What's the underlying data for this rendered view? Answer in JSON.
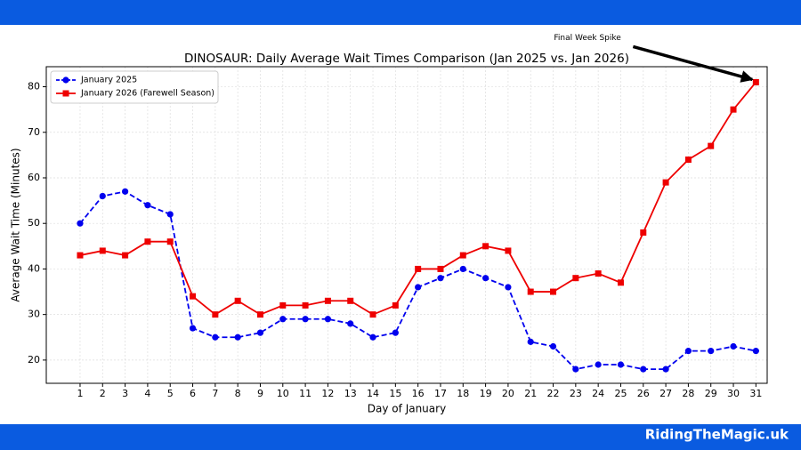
{
  "chart_data": {
    "type": "line",
    "title": "DINOSAUR: Daily Average Wait Times Comparison (Jan 2025 vs. Jan 2026)",
    "xlabel": "Day of January",
    "ylabel": "Average Wait Time (Minutes)",
    "x": [
      1,
      2,
      3,
      4,
      5,
      6,
      7,
      8,
      9,
      10,
      11,
      12,
      13,
      14,
      15,
      16,
      17,
      18,
      19,
      20,
      21,
      22,
      23,
      24,
      25,
      26,
      27,
      28,
      29,
      30,
      31
    ],
    "series": [
      {
        "name": "January 2025",
        "color": "#0000ee",
        "linestyle": "dashed",
        "marker": "circle",
        "values": [
          50,
          56,
          57,
          54,
          52,
          27,
          25,
          25,
          26,
          29,
          29,
          29,
          28,
          25,
          26,
          36,
          38,
          40,
          38,
          36,
          24,
          23,
          18,
          19,
          19,
          18,
          18,
          22,
          22,
          23,
          22
        ]
      },
      {
        "name": "January 2026 (Farewell Season)",
        "color": "#ee0000",
        "linestyle": "solid",
        "marker": "square",
        "values": [
          43,
          44,
          43,
          46,
          46,
          34,
          30,
          33,
          30,
          32,
          32,
          33,
          33,
          30,
          32,
          40,
          40,
          43,
          45,
          44,
          35,
          35,
          38,
          39,
          37,
          48,
          59,
          64,
          67,
          75,
          81
        ]
      }
    ],
    "xlim": [
      -0.5,
      31.5
    ],
    "xticks": [
      1,
      2,
      3,
      4,
      5,
      6,
      7,
      8,
      9,
      10,
      11,
      12,
      13,
      14,
      15,
      16,
      17,
      18,
      19,
      20,
      21,
      22,
      23,
      24,
      25,
      26,
      27,
      28,
      29,
      30,
      31
    ],
    "ylim": [
      14.9,
      84.4
    ],
    "yticks": [
      20,
      30,
      40,
      50,
      60,
      70,
      80
    ],
    "grid": true,
    "legend": "upper left",
    "annotation": {
      "text": "Final Week Spike",
      "x": 31,
      "y": 81
    }
  },
  "footer": "RidingTheMagic.uk"
}
